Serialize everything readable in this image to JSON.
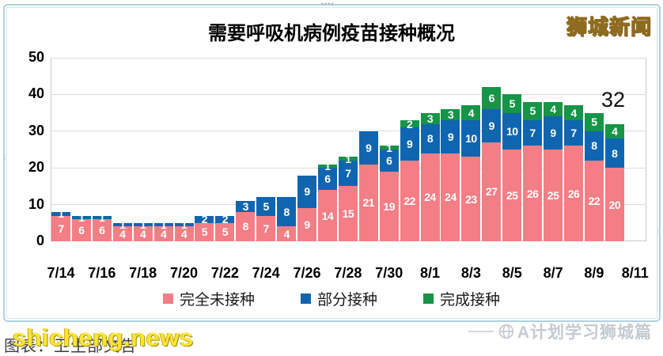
{
  "window": {
    "logo": "狮城新闻",
    "drag_dots": "••••",
    "left_handle": "⋮",
    "right_handle": "⋮\n⋮"
  },
  "title": "需要呼吸机病例疫苗接种概况",
  "legend": [
    {
      "label": "完全未接种",
      "color": "#f47e85"
    },
    {
      "label": "部分接种",
      "color": "#1065b0"
    },
    {
      "label": "完成接种",
      "color": "#169447"
    }
  ],
  "footer": {
    "caption": "图表：卫生部文告",
    "watermark_yellow": "shicheng.news",
    "watermark_gray": "A计划学习狮城篇"
  },
  "chart_data": {
    "type": "bar",
    "stacked": true,
    "title": "需要呼吸机病例疫苗接种概况",
    "x": [
      "7/14",
      "7/15",
      "7/16",
      "7/17",
      "7/18",
      "7/19",
      "7/20",
      "7/21",
      "7/22",
      "7/23",
      "7/24",
      "7/25",
      "7/26",
      "7/27",
      "7/28",
      "7/29",
      "7/30",
      "7/31",
      "8/1",
      "8/2",
      "8/3",
      "8/4",
      "8/5",
      "8/6",
      "8/7",
      "8/8",
      "8/9",
      "8/10"
    ],
    "x_tick_labels": [
      "7/14",
      "7/16",
      "7/18",
      "7/20",
      "7/22",
      "7/24",
      "7/26",
      "7/28",
      "7/30",
      "8/1",
      "8/3",
      "8/5",
      "8/7",
      "8/9",
      "8/11"
    ],
    "ylim": [
      0,
      50
    ],
    "yticks": [
      0,
      10,
      20,
      30,
      40,
      50
    ],
    "grid": true,
    "legend_position": "bottom",
    "series": [
      {
        "name": "完全未接种",
        "color": "#f47e85",
        "values": [
          7,
          6,
          6,
          4,
          4,
          4,
          4,
          5,
          5,
          8,
          7,
          4,
          9,
          14,
          15,
          21,
          19,
          22,
          24,
          24,
          23,
          27,
          25,
          26,
          25,
          26,
          22,
          20
        ]
      },
      {
        "name": "部分接种",
        "color": "#1065b0",
        "values": [
          1,
          1,
          1,
          1,
          1,
          1,
          1,
          2,
          2,
          3,
          5,
          8,
          9,
          6,
          7,
          9,
          6,
          9,
          8,
          9,
          10,
          9,
          10,
          7,
          9,
          7,
          8,
          8
        ]
      },
      {
        "name": "完成接种",
        "color": "#169447",
        "values": [
          0,
          0,
          0,
          0,
          0,
          0,
          0,
          0,
          0,
          0,
          0,
          0,
          0,
          1,
          1,
          0,
          1,
          2,
          3,
          3,
          4,
          6,
          5,
          5,
          4,
          4,
          5,
          4
        ]
      }
    ],
    "annotation": {
      "text": "32",
      "at_x": "8/10",
      "meaning": "total of last bar"
    }
  }
}
